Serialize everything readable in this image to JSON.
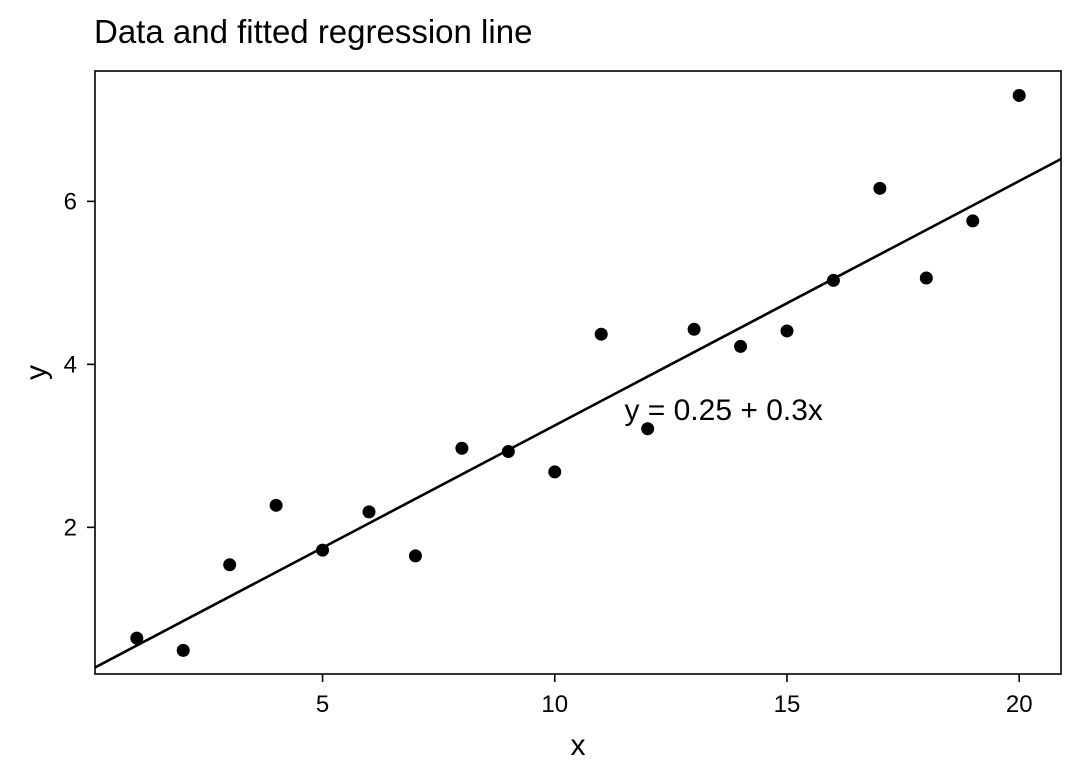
{
  "chart_data": {
    "type": "scatter",
    "title": "Data and fitted regression line",
    "xlabel": "x",
    "ylabel": "y",
    "xlim": [
      0.1,
      20.9
    ],
    "ylim": [
      0.2,
      7.6
    ],
    "xticks": [
      5,
      10,
      15,
      20
    ],
    "yticks": [
      2,
      4,
      6
    ],
    "grid": false,
    "x": [
      1,
      2,
      3,
      4,
      5,
      6,
      7,
      8,
      9,
      10,
      11,
      12,
      13,
      14,
      15,
      16,
      17,
      18,
      19,
      20
    ],
    "y": [
      0.64,
      0.49,
      1.54,
      2.27,
      1.72,
      2.19,
      1.65,
      2.97,
      2.93,
      2.68,
      4.37,
      3.21,
      4.43,
      4.22,
      4.41,
      5.03,
      6.16,
      5.06,
      5.76,
      7.3
    ],
    "fit_line": {
      "intercept": 0.25,
      "slope": 0.3
    },
    "annotation": {
      "text": "y = 0.25 + 0.3x",
      "x": 11.5,
      "y": 3.45
    },
    "colors": {
      "points": "#000000",
      "line": "#000000",
      "frame": "#000000"
    }
  }
}
